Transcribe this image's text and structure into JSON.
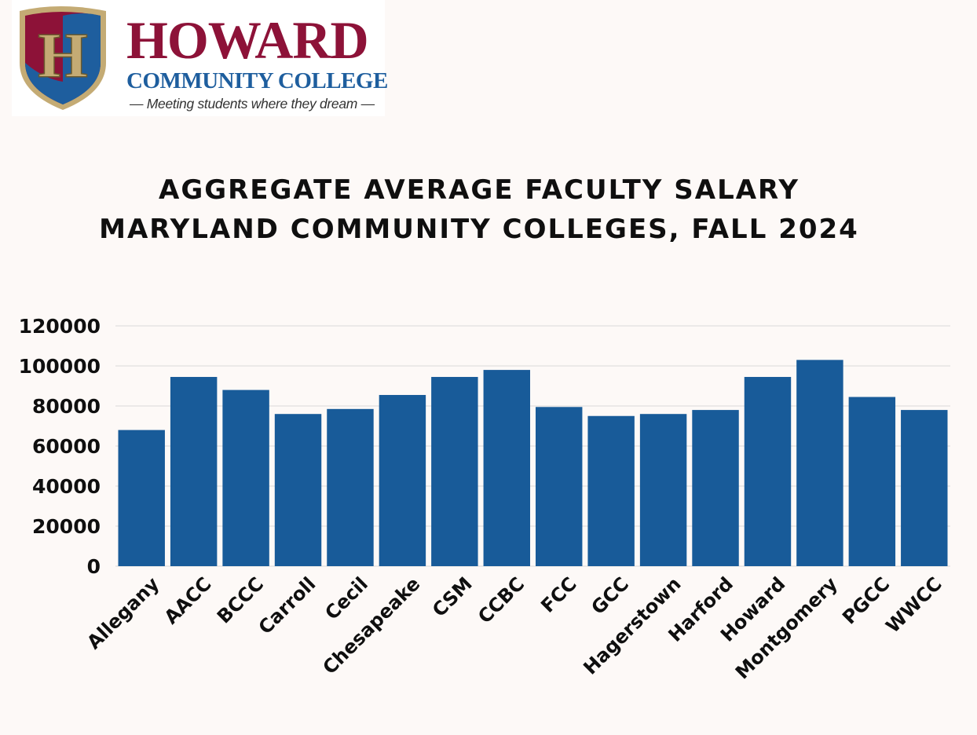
{
  "logo": {
    "emblem_letter": "H",
    "name": "HOWARD",
    "subtitle": "COMMUNITY COLLEGE",
    "tagline": "— Meeting students where they dream —",
    "colors": {
      "maroon": "#8d1238",
      "blue": "#1e5e9e",
      "gold": "#c4ab74"
    }
  },
  "chart_data": {
    "type": "bar",
    "title": "AGGREGATE AVERAGE FACULTY SALARY",
    "subtitle": "MARYLAND COMMUNITY COLLEGES, FALL 2024",
    "xlabel": "",
    "ylabel": "",
    "ylim": [
      0,
      120000
    ],
    "yticks": [
      "0",
      "20000",
      "40000",
      "60000",
      "80000",
      "100000",
      "120000"
    ],
    "yticks_values": [
      0,
      20000,
      40000,
      60000,
      80000,
      100000,
      120000
    ],
    "grid": true,
    "legend": "none",
    "bar_color": "#185b99",
    "categories": [
      "Allegany",
      "AACC",
      "BCCC",
      "Carroll",
      "Cecil",
      "Chesapeake",
      "CSM",
      "CCBC",
      "FCC",
      "GCC",
      "Hagerstown",
      "Harford",
      "Howard",
      "Montgomery",
      "PGCC",
      "WWCC"
    ],
    "values": [
      68000,
      94500,
      88000,
      76000,
      78500,
      85500,
      94500,
      98000,
      79500,
      75000,
      76000,
      78000,
      94500,
      103000,
      84500,
      78000
    ]
  }
}
